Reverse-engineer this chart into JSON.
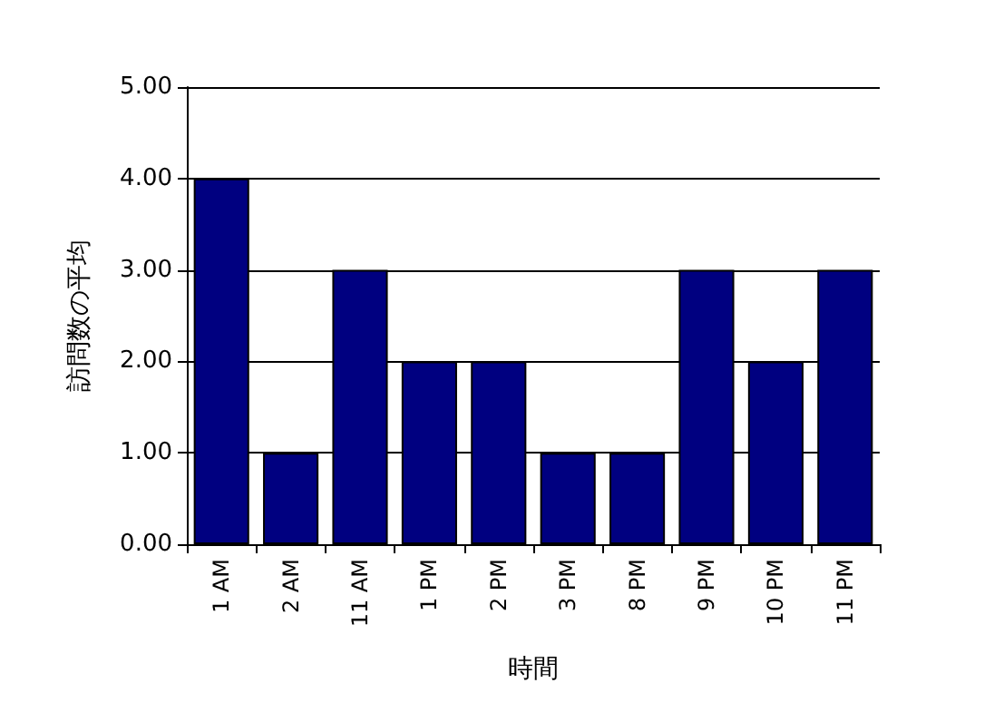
{
  "chart_data": {
    "type": "bar",
    "xlabel": "時間",
    "ylabel": "訪問数の平均",
    "categories": [
      "1 AM",
      "2 AM",
      "11 AM",
      "1 PM",
      "2 PM",
      "3 PM",
      "8 PM",
      "9 PM",
      "10 PM",
      "11 PM"
    ],
    "values": [
      4,
      1,
      3,
      2,
      2,
      1,
      1,
      3,
      2,
      3
    ],
    "color": "#000080",
    "ylim": [
      0,
      5
    ],
    "yticks": [
      {
        "value": 0,
        "label": "0.00"
      },
      {
        "value": 1,
        "label": "1.00"
      },
      {
        "value": 2,
        "label": "2.00"
      },
      {
        "value": 3,
        "label": "3.00"
      },
      {
        "value": 4,
        "label": "4.00"
      },
      {
        "value": 5,
        "label": "5.00"
      }
    ],
    "grid": "y"
  }
}
